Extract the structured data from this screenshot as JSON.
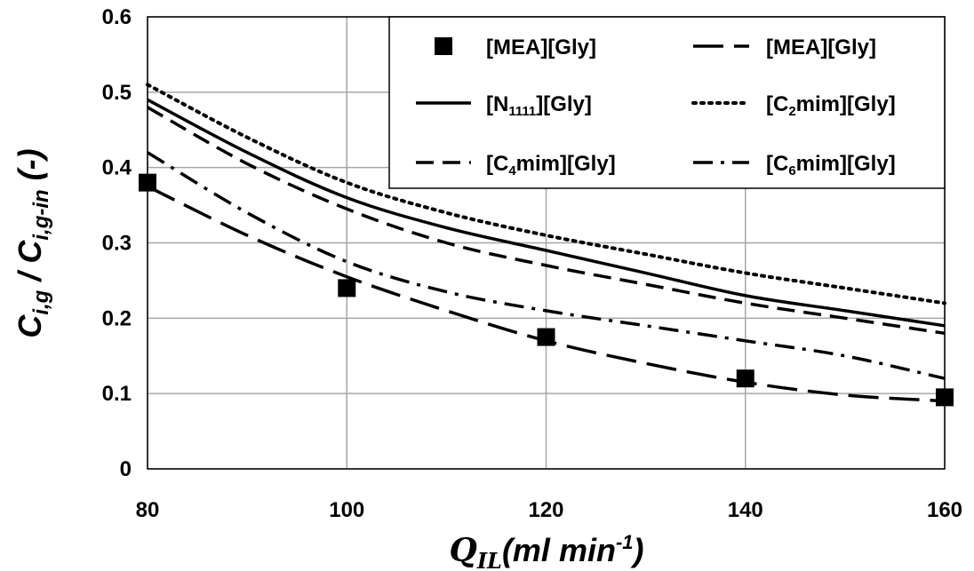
{
  "chart_data": {
    "type": "line",
    "xlabel": {
      "main": "Q",
      "sub": "IL",
      "unit": "(ml min",
      "sup": "-1",
      "close": ")"
    },
    "ylabel": {
      "c1": "C",
      "s1": "i,g",
      "sep": " / ",
      "c2": "C",
      "s2": "i,g-in",
      "unit": " (-)"
    },
    "xlim": [
      80,
      160
    ],
    "ylim": [
      0,
      0.6
    ],
    "x_ticks": [
      "80",
      "100",
      "120",
      "140",
      "160"
    ],
    "y_ticks": [
      "0",
      "0.1",
      "0.2",
      "0.3",
      "0.4",
      "0.5",
      "0.6"
    ],
    "grid": true,
    "legend_position": "top-right",
    "series": [
      {
        "name": "[MEA][Gly]",
        "kind": "markers",
        "marker": "square",
        "x": [
          80,
          100,
          120,
          140,
          160
        ],
        "y": [
          0.38,
          0.24,
          0.175,
          0.12,
          0.095
        ]
      },
      {
        "name": "[MEA][Gly]",
        "kind": "line",
        "style": "longdash",
        "x": [
          80,
          90,
          100,
          110,
          120,
          130,
          140,
          150,
          160
        ],
        "y": [
          0.375,
          0.31,
          0.255,
          0.21,
          0.17,
          0.14,
          0.115,
          0.098,
          0.09
        ]
      },
      {
        "name": "[N1111][Gly]",
        "kind": "line",
        "style": "solid",
        "x": [
          80,
          90,
          100,
          110,
          120,
          130,
          140,
          150,
          160
        ],
        "y": [
          0.49,
          0.42,
          0.36,
          0.32,
          0.29,
          0.26,
          0.23,
          0.21,
          0.19
        ]
      },
      {
        "name": "[C2mim][Gly]",
        "kind": "line",
        "style": "dotted",
        "x": [
          80,
          90,
          100,
          110,
          120,
          130,
          140,
          150,
          160
        ],
        "y": [
          0.51,
          0.44,
          0.38,
          0.34,
          0.31,
          0.285,
          0.26,
          0.24,
          0.22
        ]
      },
      {
        "name": "[C4mim][Gly]",
        "kind": "line",
        "style": "dashed",
        "x": [
          80,
          90,
          100,
          110,
          120,
          130,
          140,
          150,
          160
        ],
        "y": [
          0.48,
          0.405,
          0.345,
          0.3,
          0.27,
          0.245,
          0.22,
          0.2,
          0.18
        ]
      },
      {
        "name": "[C6mim][Gly]",
        "kind": "line",
        "style": "dashdot",
        "x": [
          80,
          90,
          100,
          110,
          120,
          130,
          140,
          150,
          160
        ],
        "y": [
          0.42,
          0.34,
          0.275,
          0.235,
          0.21,
          0.19,
          0.17,
          0.15,
          0.12
        ]
      }
    ],
    "legend": [
      {
        "series": 0,
        "text": "[MEA][Gly]"
      },
      {
        "series": 1,
        "text": "[MEA][Gly]"
      },
      {
        "series": 2,
        "pre": "[N",
        "sub": "1111",
        "post": "][Gly]"
      },
      {
        "series": 3,
        "pre": "[C",
        "sub": "2",
        "post": "mim][Gly]"
      },
      {
        "series": 4,
        "pre": "[C",
        "sub": "4",
        "post": "mim][Gly]"
      },
      {
        "series": 5,
        "pre": "[C",
        "sub": "6",
        "post": "mim][Gly]"
      }
    ]
  }
}
